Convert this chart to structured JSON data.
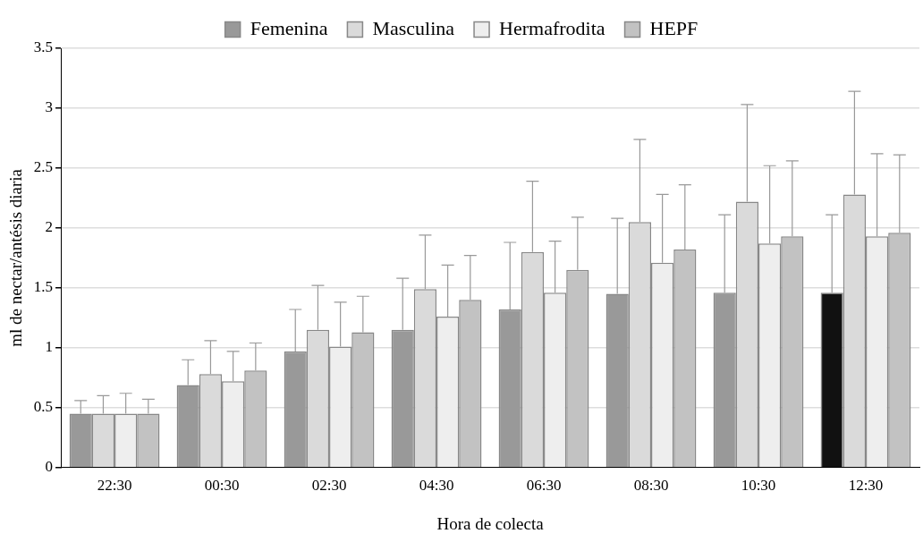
{
  "chart_data": {
    "type": "bar",
    "xlabel": "Hora de colecta",
    "ylabel": "ml de nectar/antésis diaria",
    "categories": [
      "22:30",
      "00:30",
      "02:30",
      "04:30",
      "06:30",
      "08:30",
      "10:30",
      "12:30"
    ],
    "series": [
      {
        "name": "Femenina",
        "color": "#999999",
        "colors": [
          "#999999",
          "#999999",
          "#999999",
          "#999999",
          "#999999",
          "#999999",
          "#999999",
          "#111111"
        ],
        "values": [
          0.45,
          0.69,
          0.97,
          1.15,
          1.32,
          1.45,
          1.46,
          1.46
        ],
        "errors": [
          [
            0.45,
            0.56
          ],
          [
            0.69,
            0.9
          ],
          [
            0.97,
            1.32
          ],
          [
            1.15,
            1.58
          ],
          [
            1.32,
            1.88
          ],
          [
            1.45,
            2.08
          ],
          [
            1.46,
            2.11
          ],
          [
            1.46,
            2.11
          ]
        ]
      },
      {
        "name": "Masculina",
        "color": "#dadada",
        "values": [
          0.45,
          0.78,
          1.15,
          1.49,
          1.8,
          2.05,
          2.22,
          2.28
        ],
        "errors": [
          [
            0.45,
            0.6
          ],
          [
            0.78,
            1.06
          ],
          [
            1.15,
            1.52
          ],
          [
            1.49,
            1.94
          ],
          [
            1.8,
            2.39
          ],
          [
            2.05,
            2.74
          ],
          [
            2.22,
            3.03
          ],
          [
            2.28,
            3.14
          ]
        ]
      },
      {
        "name": "Hermafrodita",
        "color": "#eeeeee",
        "values": [
          0.45,
          0.72,
          1.01,
          1.26,
          1.46,
          1.71,
          1.87,
          1.93
        ],
        "errors": [
          [
            0.45,
            0.62
          ],
          [
            0.72,
            0.97
          ],
          [
            1.01,
            1.38
          ],
          [
            1.26,
            1.69
          ],
          [
            1.46,
            1.89
          ],
          [
            1.71,
            2.28
          ],
          [
            1.87,
            2.52
          ],
          [
            1.93,
            2.62
          ]
        ]
      },
      {
        "name": "HEPF",
        "color": "#c2c2c2",
        "values": [
          0.45,
          0.81,
          1.13,
          1.4,
          1.65,
          1.82,
          1.93,
          1.96
        ],
        "errors": [
          [
            0.45,
            0.57
          ],
          [
            0.81,
            1.04
          ],
          [
            1.13,
            1.43
          ],
          [
            1.4,
            1.77
          ],
          [
            1.65,
            2.09
          ],
          [
            1.82,
            2.36
          ],
          [
            1.93,
            2.56
          ],
          [
            1.96,
            2.61
          ]
        ]
      }
    ],
    "ylim": [
      0,
      3.5
    ],
    "yticks": [
      0,
      0.5,
      1,
      1.5,
      2,
      2.5,
      3,
      3.5
    ],
    "grid": "y",
    "legend": "top"
  }
}
